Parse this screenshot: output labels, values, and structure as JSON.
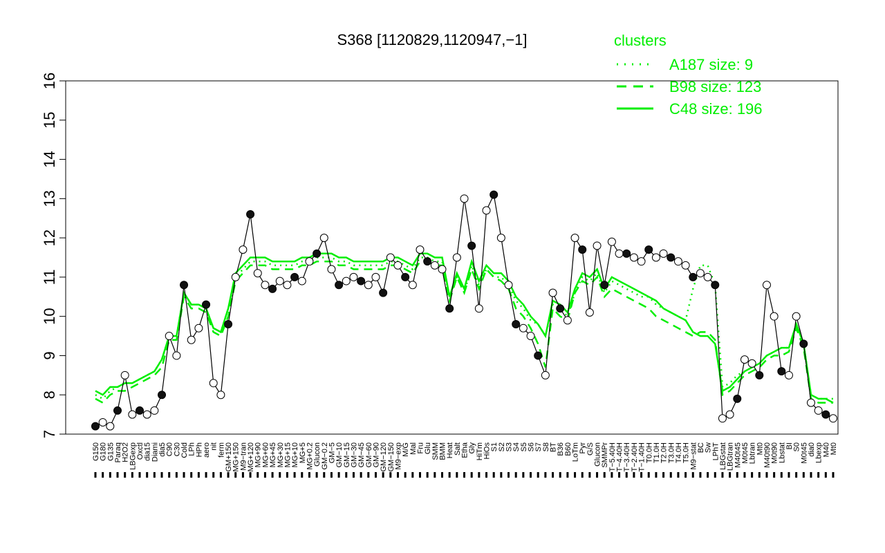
{
  "chart_data": {
    "type": "line",
    "title": "S368 [1120829,1120947,−1]",
    "xlabel": "",
    "ylabel": "",
    "ylim": [
      7,
      16
    ],
    "yticks": [
      7,
      8,
      9,
      10,
      11,
      12,
      13,
      14,
      15,
      16
    ],
    "grid": false,
    "legend": {
      "title": "clusters",
      "placement": "top-right",
      "entries": [
        {
          "label": "A187 size: 9",
          "style": "dotted"
        },
        {
          "label": "B98 size: 123",
          "style": "dashed"
        },
        {
          "label": "C48 size: 196",
          "style": "solid"
        }
      ]
    },
    "colors": {
      "cluster": "#00ee00",
      "series": "#000000"
    },
    "x_labels": [
      "G150",
      "G180",
      "G135",
      "Paraq",
      "H2O2",
      "LBGexp",
      "Oxctl",
      "dia15",
      "Diami",
      "dia5",
      "C90",
      "C30",
      "Cold",
      "LPh",
      "HPh",
      "aero",
      "nit",
      "ferm",
      "GM+150",
      "MG+150",
      "M9−tran",
      "MG+120",
      "MG+90",
      "MG+60",
      "MG+45",
      "MG+30",
      "MG+15",
      "MG+10",
      "MG+5",
      "MG+0.2",
      "Glucon",
      "GM−0.2",
      "GM−5",
      "GM−10",
      "GM−15",
      "GM−30",
      "GM−45",
      "GM−60",
      "GM−90",
      "GM−120",
      "GM−150",
      "M9−exp",
      "M/G",
      "Mal",
      "Fru",
      "Glu",
      "SMM",
      "BMM",
      "Heat",
      "Salt",
      "Etha",
      "Gly",
      "HiTm",
      "HiOs",
      "S1",
      "S2",
      "S3",
      "S4",
      "S5",
      "S6",
      "S7",
      "S8",
      "BT",
      "B36",
      "B60",
      "LoTm",
      "Pyr",
      "G/S",
      "Glucon",
      "SMMPr",
      "T−5.40H",
      "T−4.40H",
      "T−3.40H",
      "T−2.40H",
      "T−1.40H",
      "T0.0H",
      "T1.0H",
      "T2.0H",
      "T3.0H",
      "T4.0H",
      "T5.0H",
      "M9−stat",
      "BC",
      "Sw",
      "LPhT",
      "LBGstat",
      "LBGtran",
      "M40t45",
      "M0t45",
      "Lbtran",
      "Mt0",
      "M40t90",
      "M0t90",
      "Lbstat",
      "BI",
      "S0",
      "M0t45",
      "dia0",
      "Lbexp",
      "M40",
      "Mt0"
    ],
    "series": [
      {
        "name": "",
        "x": [
          0,
          1,
          2,
          3,
          4,
          5,
          6,
          7,
          8,
          9,
          10,
          11,
          12,
          13,
          14,
          15,
          16,
          17,
          18,
          19,
          20,
          21,
          22,
          23,
          24,
          25,
          26,
          27,
          28,
          29,
          30,
          31,
          32,
          33,
          34,
          35,
          36,
          37,
          38,
          39,
          40,
          41,
          42,
          43,
          44,
          45,
          46,
          47,
          48,
          49,
          50,
          51,
          52,
          53,
          54,
          55,
          56,
          57,
          58,
          59,
          60,
          61,
          62,
          63,
          64,
          65,
          66,
          67,
          68,
          69,
          70,
          71,
          72,
          73,
          74,
          75,
          76,
          77,
          78,
          79,
          80,
          81,
          82,
          83,
          84,
          85,
          86,
          87,
          88,
          89,
          90,
          91,
          92,
          93,
          94,
          95,
          96,
          97,
          98,
          99,
          100
        ],
        "values": [
          7.2,
          7.3,
          7.2,
          7.6,
          8.5,
          7.5,
          7.6,
          7.5,
          7.6,
          8.0,
          9.5,
          9.0,
          10.8,
          9.4,
          9.7,
          10.3,
          8.3,
          8.0,
          9.8,
          11.0,
          11.7,
          12.6,
          11.1,
          10.8,
          10.7,
          10.9,
          10.8,
          11.0,
          10.9,
          11.4,
          11.6,
          12.0,
          11.2,
          10.8,
          10.9,
          11.0,
          10.9,
          10.8,
          11.0,
          10.6,
          11.5,
          11.3,
          11.0,
          10.8,
          11.7,
          11.4,
          11.3,
          11.2,
          10.2,
          11.5,
          13.0,
          11.8,
          10.2,
          12.7,
          13.1,
          12.0,
          10.8,
          9.8,
          9.7,
          9.5,
          9.0,
          8.5,
          10.6,
          10.2,
          9.9,
          12.0,
          11.7,
          10.1,
          11.8,
          10.8,
          11.9,
          11.6,
          11.6,
          11.5,
          11.4,
          11.7,
          11.5,
          11.6,
          11.5,
          11.4,
          11.3,
          11.0,
          11.1,
          11.0,
          10.8,
          7.4,
          7.5,
          7.9,
          8.9,
          8.8,
          8.5,
          10.8,
          10.0,
          8.6,
          8.5,
          10.0,
          9.3,
          7.8,
          7.6,
          7.5,
          7.4
        ]
      },
      {
        "name": "",
        "style": "dotted",
        "values": [
          8.0,
          7.9,
          8.1,
          8.2,
          8.3,
          8.3,
          8.4,
          8.5,
          8.6,
          8.9,
          9.5,
          9.5,
          10.6,
          10.3,
          10.3,
          10.2,
          9.7,
          9.6,
          10.2,
          11.0,
          11.2,
          11.4,
          11.4,
          11.4,
          11.3,
          11.3,
          11.3,
          11.3,
          11.4,
          11.4,
          11.5,
          11.5,
          11.5,
          11.4,
          11.4,
          11.3,
          11.3,
          11.3,
          11.3,
          11.3,
          11.4,
          11.4,
          11.3,
          11.2,
          11.5,
          11.5,
          11.4,
          11.4,
          10.5,
          11.0,
          10.6,
          11.3,
          10.8,
          11.2,
          11.0,
          11.0,
          10.8,
          10.4,
          10.2,
          9.9,
          9.8,
          9.5,
          10.3,
          10.2,
          10.0,
          10.6,
          11.0,
          10.9,
          11.1,
          10.6,
          10.9,
          10.8,
          10.7,
          10.6,
          10.5,
          10.5,
          10.3,
          10.2,
          10.1,
          10.0,
          9.9,
          10.7,
          11.3,
          11.3,
          10.8,
          8.2,
          8.3,
          8.5,
          8.6,
          8.7,
          8.8,
          9.0,
          9.1,
          9.2,
          9.2,
          9.8,
          9.3,
          8.0,
          7.9,
          7.9,
          7.9
        ]
      },
      {
        "name": "",
        "style": "dashed",
        "values": [
          7.9,
          7.8,
          8.0,
          8.1,
          8.1,
          8.2,
          8.3,
          8.4,
          8.5,
          8.7,
          9.4,
          9.4,
          10.5,
          10.2,
          10.2,
          10.1,
          9.6,
          9.5,
          10.0,
          10.9,
          11.1,
          11.3,
          11.3,
          11.3,
          11.2,
          11.2,
          11.2,
          11.2,
          11.3,
          11.3,
          11.4,
          11.4,
          11.4,
          11.3,
          11.3,
          11.2,
          11.2,
          11.2,
          11.2,
          11.2,
          11.3,
          11.3,
          11.2,
          11.1,
          11.4,
          11.4,
          11.3,
          11.3,
          10.4,
          11.0,
          10.6,
          11.2,
          10.7,
          11.2,
          11.0,
          10.9,
          10.7,
          10.2,
          10.0,
          9.7,
          9.3,
          8.7,
          10.2,
          10.0,
          9.9,
          10.6,
          10.9,
          10.8,
          11.0,
          10.5,
          10.7,
          10.6,
          10.5,
          10.4,
          10.3,
          10.2,
          10.0,
          9.9,
          9.8,
          9.7,
          9.6,
          9.5,
          9.6,
          9.6,
          9.4,
          8.0,
          8.1,
          8.3,
          8.5,
          8.6,
          8.7,
          8.9,
          9.0,
          9.0,
          9.1,
          9.7,
          9.2,
          7.9,
          7.8,
          7.8,
          7.8
        ]
      },
      {
        "name": "",
        "style": "solid",
        "values": [
          8.1,
          8.0,
          8.2,
          8.2,
          8.3,
          8.3,
          8.4,
          8.5,
          8.6,
          8.9,
          9.5,
          9.5,
          10.6,
          10.3,
          10.3,
          10.2,
          9.7,
          9.6,
          10.2,
          11.1,
          11.3,
          11.5,
          11.5,
          11.5,
          11.4,
          11.4,
          11.4,
          11.4,
          11.5,
          11.5,
          11.6,
          11.6,
          11.6,
          11.5,
          11.5,
          11.4,
          11.4,
          11.4,
          11.4,
          11.4,
          11.5,
          11.5,
          11.4,
          11.3,
          11.6,
          11.6,
          11.5,
          11.5,
          10.5,
          11.1,
          10.7,
          11.4,
          10.9,
          11.3,
          11.1,
          11.1,
          10.9,
          10.5,
          10.3,
          10.0,
          9.8,
          9.5,
          10.4,
          10.3,
          10.1,
          10.7,
          11.1,
          11.0,
          11.2,
          10.7,
          11.0,
          10.9,
          10.8,
          10.7,
          10.6,
          10.5,
          10.4,
          10.2,
          10.1,
          10.0,
          9.9,
          9.6,
          9.5,
          9.5,
          9.3,
          8.1,
          8.2,
          8.4,
          8.6,
          8.7,
          8.8,
          9.0,
          9.1,
          9.2,
          9.2,
          9.8,
          9.3,
          8.0,
          7.9,
          7.9,
          7.8
        ]
      }
    ]
  }
}
